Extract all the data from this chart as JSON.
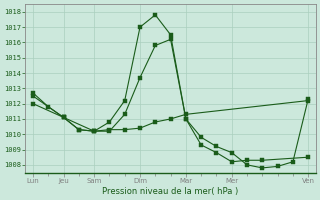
{
  "title": "Pression niveau de la mer( hPa )",
  "bg_color": "#cce8dc",
  "grid_color": "#aacfbe",
  "line_color": "#1a5c1a",
  "ylim_min": 1007.5,
  "ylim_max": 1018.5,
  "yticks": [
    1008,
    1009,
    1010,
    1011,
    1012,
    1013,
    1014,
    1015,
    1016,
    1017,
    1018
  ],
  "xtick_major_labels": [
    "Lun",
    "Jeu",
    "Sam",
    "Dim",
    "Mar",
    "Mer",
    "Ven"
  ],
  "xtick_major_positions": [
    0,
    2,
    4,
    7,
    10,
    13,
    18
  ],
  "xlim_min": -0.5,
  "xlim_max": 18.5,
  "series1_x": [
    0,
    2,
    4,
    5,
    6,
    7,
    8,
    9,
    10,
    18
  ],
  "series1_y": [
    1012.5,
    1011.1,
    1010.2,
    1010.3,
    1010.3,
    1010.4,
    1010.8,
    1011.0,
    1011.3,
    1012.2
  ],
  "series2_x": [
    0,
    2,
    3,
    4,
    5,
    6,
    7,
    8,
    9,
    10,
    11,
    12,
    13,
    14,
    15,
    18
  ],
  "series2_y": [
    1012.0,
    1011.1,
    1010.3,
    1010.2,
    1010.8,
    1012.2,
    1017.0,
    1017.8,
    1016.5,
    1011.0,
    1009.3,
    1008.8,
    1008.2,
    1008.3,
    1008.3,
    1008.5
  ],
  "series3_x": [
    0,
    1,
    2,
    3,
    4,
    5,
    6,
    7,
    8,
    9,
    10,
    11,
    12,
    13,
    14,
    15,
    16,
    17,
    18
  ],
  "series3_y": [
    1012.7,
    1011.8,
    1011.1,
    1010.3,
    1010.2,
    1010.2,
    1011.3,
    1013.7,
    1015.8,
    1016.2,
    1011.0,
    1009.8,
    1009.2,
    1008.8,
    1008.0,
    1007.8,
    1007.9,
    1008.2,
    1012.3
  ]
}
